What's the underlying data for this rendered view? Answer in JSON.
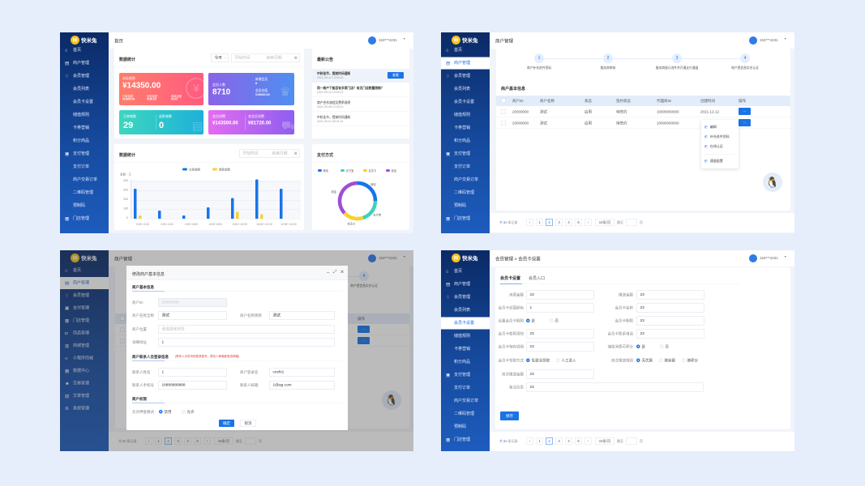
{
  "brand": "快米兔",
  "user": "153***4231",
  "colors": {
    "primary": "#1a73e8",
    "sidebar_top": "#0b2a66",
    "sidebar_bottom": "#1d5cbd",
    "wechat": "#1a73e8",
    "alipay": "#3fd1bd",
    "card": "#f8d030",
    "cash": "#9b4fd6"
  },
  "sidebar_main": [
    {
      "label": "首页",
      "icon": "home-icon",
      "level": 1
    },
    {
      "label": "商户管理",
      "icon": "shop-icon",
      "level": 1
    },
    {
      "label": "会员管理",
      "icon": "diamond-icon",
      "level": 1
    },
    {
      "label": "会员列表",
      "level": 2
    },
    {
      "label": "会员卡设置",
      "level": 2
    },
    {
      "label": "储值规则",
      "level": 2
    },
    {
      "label": "卡券营销",
      "level": 2
    },
    {
      "label": "积分商品",
      "level": 2
    },
    {
      "label": "支付管理",
      "icon": "payment-icon",
      "level": 1
    },
    {
      "label": "支付订单",
      "level": 2
    },
    {
      "label": "商户交易订单",
      "level": 2
    },
    {
      "label": "二维码管理",
      "level": 2
    },
    {
      "label": "预制码",
      "level": 2
    },
    {
      "label": "门店管理",
      "icon": "store-icon",
      "level": 1
    }
  ],
  "sidebar_alt": [
    {
      "label": "首页",
      "icon": "home-icon"
    },
    {
      "label": "商户管理",
      "icon": "shop-icon"
    },
    {
      "label": "会员管理",
      "icon": "diamond-icon"
    },
    {
      "label": "支付管理",
      "icon": "payment-icon"
    },
    {
      "label": "门店管理",
      "icon": "store-icon"
    },
    {
      "label": "商品管理",
      "icon": "lock-icon"
    },
    {
      "label": "商城管理",
      "icon": "mall-icon"
    },
    {
      "label": "小程序商城",
      "icon": "link-icon"
    },
    {
      "label": "数据中心",
      "icon": "data-icon"
    },
    {
      "label": "交易管理",
      "icon": "users-icon"
    },
    {
      "label": "文章管理",
      "icon": "document-icon"
    },
    {
      "label": "系统管理",
      "icon": "gear-icon"
    }
  ],
  "dashboard": {
    "title": "首页",
    "stats_title": "数据统计",
    "period": "今天",
    "start_placeholder": "开始时间",
    "end_placeholder": "结束日期",
    "received": {
      "label": "实际收款",
      "value": "¥14350.00",
      "subs": [
        {
          "label": "订单金额",
          "value": "¥15000.00"
        },
        {
          "label": "优惠金额",
          "value": "¥150.00"
        },
        {
          "label": "退款金额",
          "value": "¥0.00"
        }
      ]
    },
    "members": {
      "label": "会员人数",
      "value": "8710",
      "subs": [
        {
          "label": "新增会员",
          "value": "8"
        },
        {
          "label": "会员充值",
          "value": "¥15000.00"
        }
      ]
    },
    "orders": {
      "left_label": "订单笔数",
      "left_value": "29",
      "right_label": "退款笔数",
      "right_value": "0"
    },
    "consume": {
      "left_label": "会员消费",
      "left_value": "¥143500.00",
      "right_label": "非会员消费",
      "right_value": "¥81720.00"
    },
    "notices_title": "最新公告",
    "view_label": "查看",
    "notices": [
      {
        "title": "中秋佳节，提前时间通知",
        "date": "2021-09-12 13:00:12"
      },
      {
        "title": "同一商户下能否有多家门店？有无门店数量限制？",
        "date": "2021-09-10 19:00:12"
      },
      {
        "title": "商户合作流程及费率说明",
        "date": "2021-09-08 10:00:12"
      },
      {
        "title": "中秋佳节，提前时间通知",
        "date": "2021-09-01 09:01:01"
      }
    ],
    "chart_title": "数据统计",
    "pay_title": "支付方式"
  },
  "chart_data": [
    {
      "type": "bar",
      "title": "数据统计",
      "ylabel": "金额：元",
      "categories": [
        "0:00～2:00",
        "2:00～4:00",
        "4:00～6:00",
        "6:00～8:00",
        "8:00～10:00",
        "10:00～12:00",
        "12:00～14:00"
      ],
      "series": [
        {
          "name": "交易金额",
          "values": [
            320,
            85,
            35,
            120,
            220,
            420,
            320
          ]
        },
        {
          "name": "退款金额",
          "values": [
            35,
            0,
            0,
            0,
            75,
            50,
            0
          ]
        }
      ],
      "yticks": [
        "0",
        "100",
        "200",
        "300",
        "400"
      ],
      "ylim": [
        0,
        400
      ],
      "legend": "top-center"
    },
    {
      "type": "pie",
      "title": "支付方式",
      "labels": [
        "微信",
        "支付宝",
        "会员卡",
        "现金"
      ],
      "values": [
        25,
        20,
        18,
        37
      ],
      "legend": "top"
    }
  ],
  "merchant": {
    "title": "商户管理",
    "steps": [
      {
        "num": "1",
        "label": "商户补充进件资料"
      },
      {
        "num": "2",
        "label": "服务商审核"
      },
      {
        "num": "3",
        "label": "服务商接口进件并开通支付通道"
      },
      {
        "num": "4",
        "label": "商户提信息实名认证"
      }
    ],
    "section_title": "商户基本信息",
    "columns": [
      "商户ID",
      "商户名称",
      "状态",
      "签约状态",
      "代理商ID",
      "创建时间",
      "操作"
    ],
    "rows": [
      [
        "20000000",
        "测试",
        "启用",
        "待签约",
        "10000000000",
        "2021-12-12"
      ],
      [
        "20000000",
        "测试",
        "启用",
        "待签约",
        "10000000000",
        ""
      ]
    ],
    "more_label": "···",
    "menu": [
      "编辑",
      "补充进件资料",
      "在线认证",
      "通道配置"
    ]
  },
  "pagination": {
    "total_prefix": "共",
    "total": "50",
    "total_suffix": "条记录",
    "prev": "‹",
    "next": "›",
    "pages": [
      "1",
      "2",
      "3",
      "4",
      "5"
    ],
    "current": "2",
    "size": "10条/页",
    "jump": "跳至",
    "page_unit": "页"
  },
  "modal": {
    "title": "修改商户基本信息",
    "sec1": "商户基本信息",
    "merchant_id_label": "商户ID",
    "merchant_id": "20000000",
    "full_name_label": "商户名称全称",
    "full_name": "测试",
    "short_name_label": "商户名称简称",
    "short_name": "测试",
    "location_label": "商户位置",
    "location_placeholder": "请选择省市区",
    "address_label": "详细地址",
    "address": "1",
    "sec2": "商户联系人及登录信息",
    "sec2_note": "(联系人手机号即登录账号，联系人邮箱即登录邮箱)",
    "contact_name_label": "联系人姓名",
    "contact_name": "1",
    "login_label": "商户登录名",
    "login": "ceshi1",
    "phone_label": "联系人手机号",
    "phone": "18888888888",
    "email_label": "联系人邮箱",
    "email": "1@qq.com",
    "sec3": "商户权限",
    "deposit_label": "允许押金模式",
    "deposit_options": [
      "禁用",
      "允许"
    ],
    "confirm": "确定",
    "cancel": "取消"
  },
  "member_card": {
    "breadcrumb": "会员管理 > 会员卡设置",
    "tabs": [
      "会员卡设置",
      "会员入口"
    ],
    "left": [
      {
        "label": "消费金额",
        "value": "23"
      },
      {
        "label": "会员卡封面颜色",
        "value": "1"
      },
      {
        "label": "设置会员卡期限",
        "options": [
          "是",
          "否"
        ],
        "selected": 0
      },
      {
        "label": "会员卡使用须知",
        "value": "23"
      },
      {
        "label": "会员卡特权说明",
        "value": "23"
      },
      {
        "label": "会员卡领取方式",
        "options": [
          "免激活领取",
          "人工录入"
        ],
        "selected": 0
      },
      {
        "label": "首次赠送金额",
        "value": "23"
      }
    ],
    "right": [
      {
        "label": "赠送金额",
        "value": "23"
      },
      {
        "label": "会员卡名称",
        "value": "23"
      },
      {
        "label": "会员卡期限",
        "value": "23"
      },
      {
        "label": "会员卡联系电话",
        "value": "23"
      },
      {
        "label": "储值消费可积分",
        "options": [
          "是",
          "否"
        ],
        "selected": 0
      },
      {
        "label": "首次赠送规则",
        "options": [
          "无优惠",
          "赠余额",
          "赠积分"
        ],
        "selected": 0
      }
    ],
    "remark_label": "备注信息",
    "remark": "23",
    "save": "保存"
  }
}
